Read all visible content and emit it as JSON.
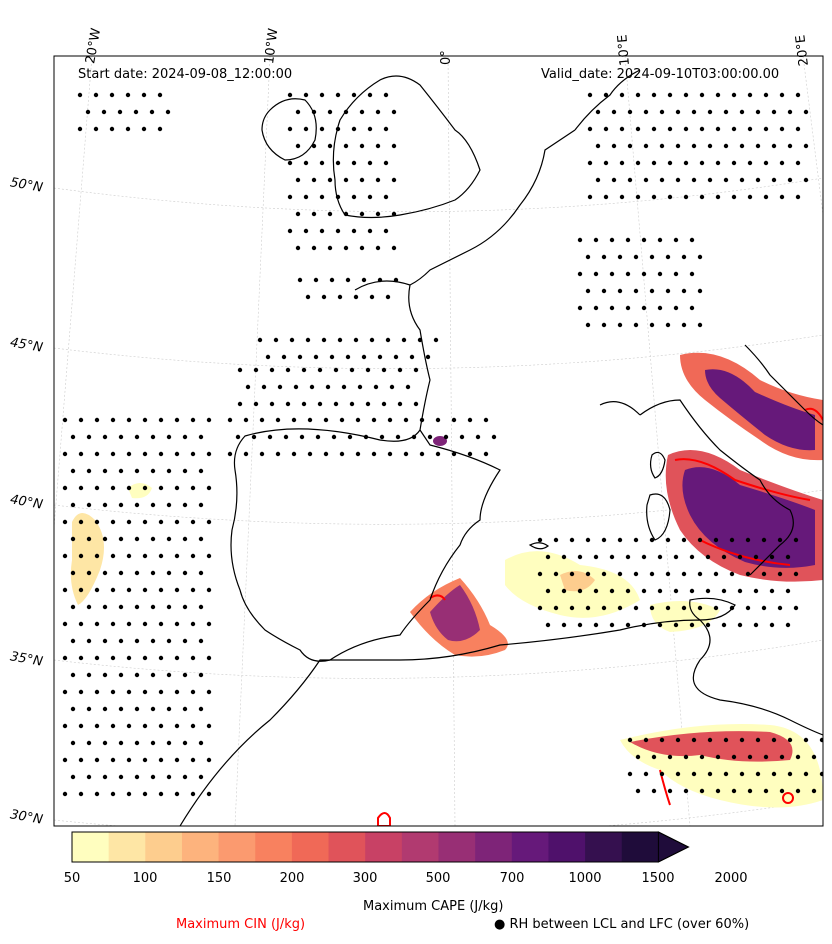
{
  "header": {
    "start_date": "Start date: 2024-09-08_12:00:00",
    "valid_date": "Valid_date: 2024-09-10T03:00:00.00"
  },
  "map": {
    "lon_labels": [
      "20°W",
      "10°W",
      "0°",
      "10°E",
      "20°E"
    ],
    "lat_labels": [
      "50°N",
      "45°N",
      "40°N",
      "35°N",
      "30°N"
    ]
  },
  "colorbar": {
    "title": "Maximum CAPE (J/kg)",
    "tick_labels": [
      "50",
      "100",
      "150",
      "200",
      "300",
      "500",
      "700",
      "1000",
      "1500",
      "2000"
    ],
    "colors": [
      "#fffebf",
      "#fee6a5",
      "#fdcd8e",
      "#fdb37d",
      "#fb9a6f",
      "#f8815f",
      "#f06957",
      "#e0535a",
      "#c84165",
      "#b13a70",
      "#982f75",
      "#7e2478",
      "#66197a",
      "#4f116b",
      "#35104f",
      "#1f0c3a"
    ]
  },
  "legend": {
    "cin_label": "Maximum CIN (J/kg)",
    "rh_label": "● RH between LCL and LFC (over 60%)",
    "cin_color": "#ff0000"
  }
}
